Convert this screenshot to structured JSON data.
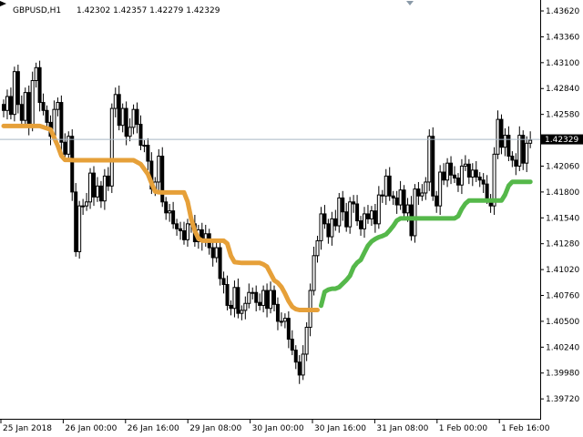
{
  "header": {
    "symbol_timeframe": "GBPUSD,H1",
    "ohlc": "1.42302 1.42357 1.42279 1.42329"
  },
  "current_price_label": "1.42329",
  "colors": {
    "background": "#ffffff",
    "candle": "#000000",
    "price_line": "#a9b7c4",
    "price_label_bg": "#000000",
    "stop_down": "#e6a039",
    "stop_up": "#55b84a",
    "axis": "#000000"
  },
  "chart_data": {
    "type": "candlestick",
    "title": "GBPUSD,H1",
    "ohlc_readout": "1.42302 1.42357 1.42279 1.42329",
    "ylim": [
      1.3952,
      1.4373
    ],
    "yticks": [
      "1.43620",
      "1.43360",
      "1.43100",
      "1.42840",
      "1.42580",
      "1.42060",
      "1.41800",
      "1.41540",
      "1.41280",
      "1.41020",
      "1.40760",
      "1.40500",
      "1.40240",
      "1.39980",
      "1.39720"
    ],
    "xticks": [
      "25 Jan 2018",
      "26 Jan 00:00",
      "26 Jan 16:00",
      "29 Jan 08:00",
      "30 Jan 00:00",
      "30 Jan 16:00",
      "31 Jan 08:00",
      "1 Feb 00:00",
      "1 Feb 16:00"
    ],
    "current_price": 1.42329,
    "closes": [
      1.4262,
      1.4276,
      1.4258,
      1.4301,
      1.4268,
      1.4252,
      1.428,
      1.4246,
      1.4292,
      1.4305,
      1.427,
      1.4262,
      1.425,
      1.4236,
      1.4263,
      1.427,
      1.423,
      1.4218,
      1.4236,
      1.418,
      1.412,
      1.4166,
      1.4166,
      1.417,
      1.4199,
      1.4175,
      1.4186,
      1.4171,
      1.4196,
      1.4186,
      1.4264,
      1.4278,
      1.4247,
      1.4264,
      1.4236,
      1.4245,
      1.4263,
      1.4248,
      1.4227,
      1.4227,
      1.4211,
      1.4183,
      1.419,
      1.4216,
      1.417,
      1.4159,
      1.4161,
      1.4148,
      1.4143,
      1.4141,
      1.4132,
      1.4148,
      1.4148,
      1.413,
      1.4142,
      1.413,
      1.4138,
      1.4124,
      1.4114,
      1.4124,
      1.4093,
      1.4087,
      1.4066,
      1.4063,
      1.4084,
      1.4058,
      1.4061,
      1.4068,
      1.4079,
      1.4079,
      1.4069,
      1.4066,
      1.4081,
      1.4063,
      1.4081,
      1.4067,
      1.405,
      1.405,
      1.4053,
      1.4032,
      1.4021,
      1.4009,
      1.3996,
      1.4017,
      1.4044,
      1.4081,
      1.4116,
      1.4131,
      1.4158,
      1.4148,
      1.4135,
      1.4153,
      1.4146,
      1.4174,
      1.416,
      1.4145,
      1.417,
      1.4168,
      1.4151,
      1.4143,
      1.4158,
      1.4153,
      1.4161,
      1.4148,
      1.4177,
      1.4176,
      1.4196,
      1.4176,
      1.4174,
      1.4167,
      1.4182,
      1.4159,
      1.4167,
      1.4136,
      1.4183,
      1.4176,
      1.4179,
      1.419,
      1.4236,
      1.4176,
      1.4166,
      1.42,
      1.4192,
      1.4209,
      1.4197,
      1.4194,
      1.4187,
      1.4206,
      1.4208,
      1.4195,
      1.4202,
      1.4195,
      1.4192,
      1.4188,
      1.4173,
      1.4166,
      1.4218,
      1.4253,
      1.4225,
      1.4237,
      1.4216,
      1.4212,
      1.4206,
      1.4237,
      1.4209,
      1.4229,
      1.4232
    ],
    "series": [
      {
        "name": "",
        "role": "stop-down",
        "color": "#e6a039",
        "x": [
          0,
          10,
          13,
          15,
          16,
          17,
          18,
          19,
          20,
          21,
          22,
          36,
          38,
          40,
          41,
          42,
          43,
          44,
          45,
          50,
          51,
          52,
          53,
          54,
          55,
          56,
          61,
          62,
          63,
          64,
          66,
          71,
          72,
          73,
          74,
          75,
          76,
          77,
          78,
          79,
          80,
          81,
          82,
          83,
          87
        ],
        "y": [
          1.42463,
          1.42463,
          1.42429,
          1.42265,
          1.42164,
          1.42123,
          1.42123,
          1.4212,
          1.42119,
          1.42119,
          1.42119,
          1.42119,
          1.4208,
          1.41979,
          1.41888,
          1.41804,
          1.41798,
          1.41795,
          1.41795,
          1.41795,
          1.41702,
          1.4153,
          1.41408,
          1.41332,
          1.41312,
          1.4131,
          1.4131,
          1.41281,
          1.41158,
          1.41095,
          1.41087,
          1.41087,
          1.41073,
          1.41049,
          1.40982,
          1.40912,
          1.40887,
          1.40846,
          1.40779,
          1.40703,
          1.40647,
          1.40622,
          1.40614,
          1.40614,
          1.40614
        ]
      },
      {
        "name": "",
        "role": "stop-up",
        "color": "#55b84a",
        "x": [
          88,
          89,
          90,
          91,
          92,
          93,
          95,
          96,
          97,
          98,
          99,
          100,
          101,
          102,
          103,
          104,
          105,
          106,
          107,
          108,
          109,
          110,
          111,
          112,
          113,
          114,
          115,
          116,
          117,
          118,
          119,
          120,
          121,
          122,
          123,
          124,
          125,
          126,
          127,
          128,
          129,
          130,
          131,
          132,
          133,
          134,
          135,
          136,
          137,
          138,
          139,
          140,
          141,
          142,
          143,
          144,
          145,
          146
        ],
        "y": [
          1.40657,
          1.40797,
          1.40818,
          1.40828,
          1.40828,
          1.40843,
          1.40914,
          1.40958,
          1.41043,
          1.4109,
          1.41117,
          1.4119,
          1.41262,
          1.41303,
          1.41328,
          1.41346,
          1.41358,
          1.41374,
          1.41413,
          1.41458,
          1.41512,
          1.41534,
          1.41534,
          1.41534,
          1.41534,
          1.41534,
          1.41534,
          1.41534,
          1.41534,
          1.41534,
          1.41534,
          1.41534,
          1.41534,
          1.41534,
          1.41534,
          1.41534,
          1.41534,
          1.41557,
          1.4163,
          1.41684,
          1.41714,
          1.41714,
          1.41714,
          1.41714,
          1.41714,
          1.41714,
          1.41714,
          1.41714,
          1.41714,
          1.41714,
          1.41771,
          1.41863,
          1.41902,
          1.41902,
          1.41902,
          1.41902,
          1.41902,
          1.41902
        ]
      }
    ],
    "xlabel": "",
    "ylabel": "",
    "grid": false,
    "legend": "none"
  }
}
